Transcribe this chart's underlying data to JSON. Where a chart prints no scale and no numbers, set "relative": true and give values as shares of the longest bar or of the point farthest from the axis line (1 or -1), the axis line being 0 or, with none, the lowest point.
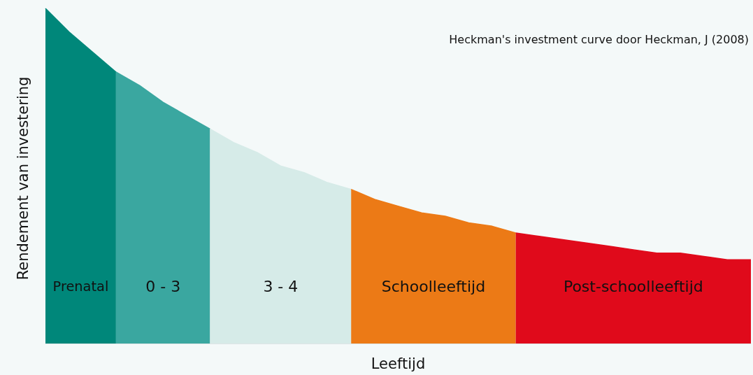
{
  "chart_data": {
    "type": "area",
    "relative": true,
    "xlabel": "Leeftijd",
    "ylabel": "Rendement van investering",
    "annotations": [
      "Heckman's investment curve door Heckman, J (2008)"
    ],
    "categories": [
      null,
      null,
      null,
      null,
      null,
      null,
      null,
      null,
      null,
      null,
      null,
      null,
      null,
      null,
      null,
      null,
      null,
      null,
      null,
      null,
      null,
      null,
      null,
      null,
      null,
      null,
      null,
      null,
      null,
      null,
      null
    ],
    "series": [
      {
        "name": "Prenatal",
        "color": "#00877a",
        "values": [
          1.0,
          0.93,
          0.87,
          0.81,
          null,
          null,
          null,
          null,
          null,
          null,
          null,
          null,
          null,
          null,
          null,
          null,
          null,
          null,
          null,
          null,
          null,
          null,
          null,
          null,
          null,
          null,
          null,
          null,
          null,
          null,
          null
        ]
      },
      {
        "name": "0 - 3",
        "color": "#3aa7a0",
        "values": [
          null,
          null,
          null,
          0.81,
          0.77,
          0.72,
          0.68,
          0.64,
          null,
          null,
          null,
          null,
          null,
          null,
          null,
          null,
          null,
          null,
          null,
          null,
          null,
          null,
          null,
          null,
          null,
          null,
          null,
          null,
          null,
          null,
          null
        ]
      },
      {
        "name": "3 - 4",
        "color": "#d6ebe8",
        "values": [
          null,
          null,
          null,
          null,
          null,
          null,
          null,
          0.64,
          0.6,
          0.57,
          0.53,
          0.51,
          0.48,
          0.46,
          null,
          null,
          null,
          null,
          null,
          null,
          null,
          null,
          null,
          null,
          null,
          null,
          null,
          null,
          null,
          null,
          null
        ]
      },
      {
        "name": "Schoolleeftijd",
        "color": "#ec7a16",
        "values": [
          null,
          null,
          null,
          null,
          null,
          null,
          null,
          null,
          null,
          null,
          null,
          null,
          null,
          0.46,
          0.43,
          0.41,
          0.39,
          0.38,
          0.36,
          0.35,
          0.33,
          null,
          null,
          null,
          null,
          null,
          null,
          null,
          null,
          null,
          null
        ]
      },
      {
        "name": "Post-schoolleeftijd",
        "color": "#e00a1b",
        "values": [
          null,
          null,
          null,
          null,
          null,
          null,
          null,
          null,
          null,
          null,
          null,
          null,
          null,
          null,
          null,
          null,
          null,
          null,
          null,
          null,
          0.33,
          0.32,
          0.31,
          0.3,
          0.29,
          0.28,
          0.27,
          0.27,
          0.26,
          0.25,
          0.25
        ]
      }
    ]
  }
}
